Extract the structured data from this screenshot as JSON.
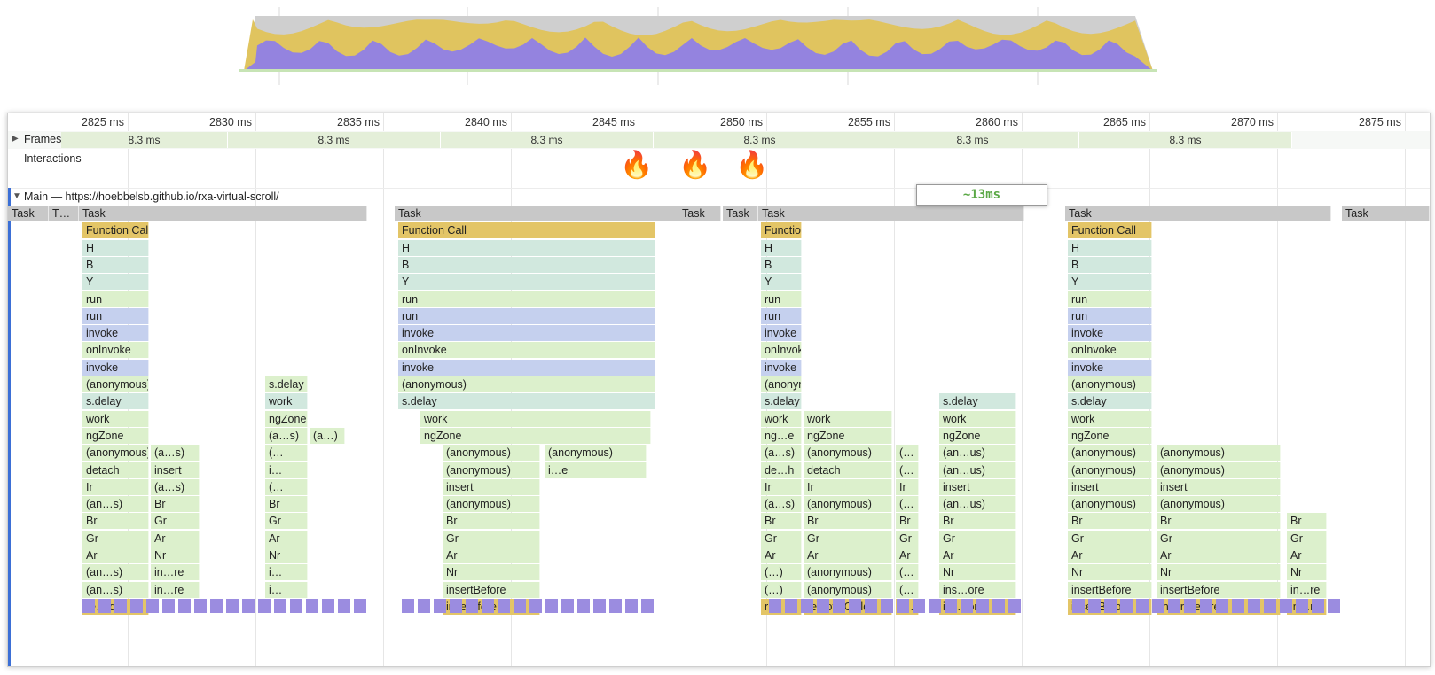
{
  "ruler": {
    "ticks": [
      "2825 ms",
      "2830 ms",
      "2835 ms",
      "2840 ms",
      "2845 ms",
      "2850 ms",
      "2855 ms",
      "2860 ms",
      "2865 ms",
      "2870 ms",
      "2875 ms"
    ]
  },
  "frames": {
    "label": "Frames",
    "durations": [
      "8.3 ms",
      "8.3 ms",
      "8.3 ms",
      "8.3 ms",
      "8.3 ms",
      "8.3 ms"
    ]
  },
  "interactions": {
    "label": "Interactions",
    "markers": [
      "🔥",
      "🔥",
      "🔥"
    ]
  },
  "main": {
    "title": "Main — https://hoebbelsb.github.io/rxa-virtual-scroll/",
    "highlight": "~13ms"
  },
  "colors": {
    "task_gray": "#c8c8c8",
    "function_call": "#e3c567",
    "green": "#dcf0cc",
    "teal": "#d1e8de",
    "blue": "#c5d0ee",
    "purple": "#9b8ce0",
    "overview_gold": "#e0c45f",
    "overview_purple": "#9483df",
    "overview_gray": "#cfcfcf"
  },
  "flame": {
    "tasks": [
      "Task",
      "T…",
      "Task",
      "Task",
      "Task",
      "Task",
      "Task",
      "Task",
      "Task"
    ],
    "columns": [
      {
        "name": "col-1",
        "labels": [
          "Function Call",
          "H",
          "B",
          "Y",
          "run",
          "run",
          "invoke",
          "onInvoke",
          "invoke",
          "(anonymous)",
          "s.delay",
          "work",
          "ngZone",
          "(anonymous)",
          "detach",
          "Ir",
          "(an…s)",
          "Br",
          "Gr",
          "Ar",
          "(an…s)",
          "(an…s)",
          "re…ld"
        ]
      },
      {
        "name": "col-1b",
        "labels": [
          "(a…s)",
          "insert",
          "(a…s)",
          "Br",
          "Gr",
          "Ar",
          "Nr",
          "in…re",
          "in…re"
        ]
      },
      {
        "name": "col-1c",
        "labels": [
          "s.delay",
          "work",
          "ngZone",
          "(a…s)",
          "(…",
          "i…",
          "(…",
          "Br",
          "Gr",
          "Ar",
          "Nr",
          "i…",
          "i…"
        ]
      },
      {
        "name": "col-1d",
        "labels": [
          "(a…)"
        ]
      },
      {
        "name": "col-2",
        "labels": [
          "Function Call",
          "H",
          "B",
          "Y",
          "run",
          "run",
          "invoke",
          "onInvoke",
          "invoke",
          "(anonymous)",
          "s.delay"
        ]
      },
      {
        "name": "col-2b",
        "labels": [
          "work",
          "ngZone"
        ]
      },
      {
        "name": "col-2c",
        "labels": [
          "(anonymous)",
          "(anonymous)",
          "insert",
          "(anonymous)",
          "Br",
          "Gr",
          "Ar",
          "Nr",
          "insertBefore",
          "inse…fore"
        ]
      },
      {
        "name": "col-2d",
        "labels": [
          "(anonymous)",
          "i…e"
        ]
      },
      {
        "name": "col-3",
        "labels": [
          "Function Call",
          "H",
          "B",
          "Y",
          "run",
          "run",
          "invoke",
          "onInvoke",
          "invoke",
          "(anonymous)",
          "s.delay",
          "work",
          "ng…e",
          "(a…s)",
          "de…h",
          "Ir",
          "(a…s)",
          "Br",
          "Gr",
          "Ar",
          "(…)",
          "(…)",
          "r…"
        ]
      },
      {
        "name": "col-3b",
        "labels": [
          "work",
          "ngZone",
          "(anonymous)",
          "detach",
          "Ir",
          "(anonymous)",
          "Br",
          "Gr",
          "Ar",
          "(anonymous)",
          "(anonymous)",
          "removeChild"
        ]
      },
      {
        "name": "col-3c",
        "labels": [
          "(…",
          "(…",
          "Ir",
          "(…",
          "Br",
          "Gr",
          "Ar",
          "(…",
          "(…",
          "r…"
        ]
      },
      {
        "name": "col-3d",
        "labels": [
          "s.delay",
          "work",
          "ngZone",
          "(an…us)",
          "(an…us)",
          "insert",
          "(an…us)",
          "Br",
          "Gr",
          "Ar",
          "Nr",
          "ins…ore",
          "ins…ore"
        ]
      },
      {
        "name": "col-4",
        "labels": [
          "Function Call",
          "H",
          "B",
          "Y",
          "run",
          "run",
          "invoke",
          "onInvoke",
          "invoke",
          "(anonymous)",
          "s.delay",
          "work",
          "ngZone",
          "(anonymous)",
          "(anonymous)",
          "insert",
          "(anonymous)",
          "Br",
          "Gr",
          "Ar",
          "Nr",
          "insertBefore",
          "insertBefore"
        ]
      },
      {
        "name": "col-4b",
        "labels": [
          "(anonymous)",
          "(anonymous)",
          "insert",
          "(anonymous)",
          "Br",
          "Gr",
          "Ar",
          "Nr",
          "insertBefore",
          "insertBefore"
        ]
      },
      {
        "name": "col-4c",
        "labels": [
          "Br",
          "Gr",
          "Ar",
          "Nr",
          "in…re",
          "in…re"
        ]
      }
    ]
  }
}
